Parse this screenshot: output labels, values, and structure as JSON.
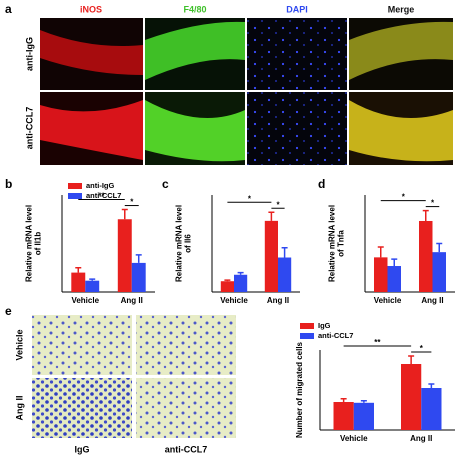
{
  "panel_labels": [
    "a",
    "b",
    "c",
    "d",
    "e"
  ],
  "figure_a": {
    "columns": [
      "iNOS",
      "F4/80",
      "DAPI",
      "Merge"
    ],
    "rows": [
      "anti-IgG",
      "anti-CCL7"
    ]
  },
  "figure_e": {
    "rows": [
      "Vehicle",
      "Ang II"
    ],
    "columns": [
      "IgG",
      "anti-CCL7"
    ]
  },
  "chart_data": [
    {
      "type": "bar",
      "ylabel": [
        "Relative mRNA level",
        "of Il1b"
      ],
      "categories": [
        "Vehicle",
        "Ang II"
      ],
      "series": [
        {
          "name": "anti-IgG",
          "color": "#e8201e",
          "values": [
            1.2,
            4.5
          ],
          "errors": [
            0.3,
            0.6
          ]
        },
        {
          "name": "anti-CCL7",
          "color": "#2f49f0",
          "values": [
            0.7,
            1.8
          ],
          "errors": [
            0.1,
            0.5
          ]
        }
      ],
      "ylim": [
        0,
        6
      ],
      "annotations": [
        "**",
        "*"
      ],
      "legend": true
    },
    {
      "type": "bar",
      "ylabel": [
        "Relative mRNA level",
        "of Il6"
      ],
      "categories": [
        "Vehicle",
        "Ang II"
      ],
      "series": [
        {
          "color": "#e8201e",
          "values": [
            1.0,
            6.6
          ],
          "errors": [
            0.1,
            0.8
          ]
        },
        {
          "color": "#2f49f0",
          "values": [
            1.6,
            3.2
          ],
          "errors": [
            0.2,
            0.9
          ]
        }
      ],
      "ylim": [
        0,
        9
      ],
      "annotations": [
        "*",
        "*"
      ],
      "legend": false
    },
    {
      "type": "bar",
      "ylabel": [
        "Relative mRNA level",
        "of Tnfa"
      ],
      "categories": [
        "Vehicle",
        "Ang II"
      ],
      "series": [
        {
          "color": "#e8201e",
          "values": [
            1.0,
            2.05
          ],
          "errors": [
            0.3,
            0.3
          ]
        },
        {
          "color": "#2f49f0",
          "values": [
            0.75,
            1.15
          ],
          "errors": [
            0.2,
            0.25
          ]
        }
      ],
      "ylim": [
        0,
        2.8
      ],
      "annotations": [
        "*",
        "*"
      ],
      "legend": false
    },
    {
      "type": "bar",
      "ylabel": [
        "Number of migrated cells"
      ],
      "categories": [
        "Vehicle",
        "Ang II"
      ],
      "series": [
        {
          "name": "IgG",
          "color": "#e8201e",
          "values": [
            70,
            165
          ],
          "errors": [
            8,
            20
          ]
        },
        {
          "name": "anti-CCL7",
          "color": "#2f49f0",
          "values": [
            68,
            105
          ],
          "errors": [
            5,
            10
          ]
        }
      ],
      "ylim": [
        0,
        200
      ],
      "annotations": [
        "**",
        "*"
      ],
      "legend": true
    }
  ]
}
